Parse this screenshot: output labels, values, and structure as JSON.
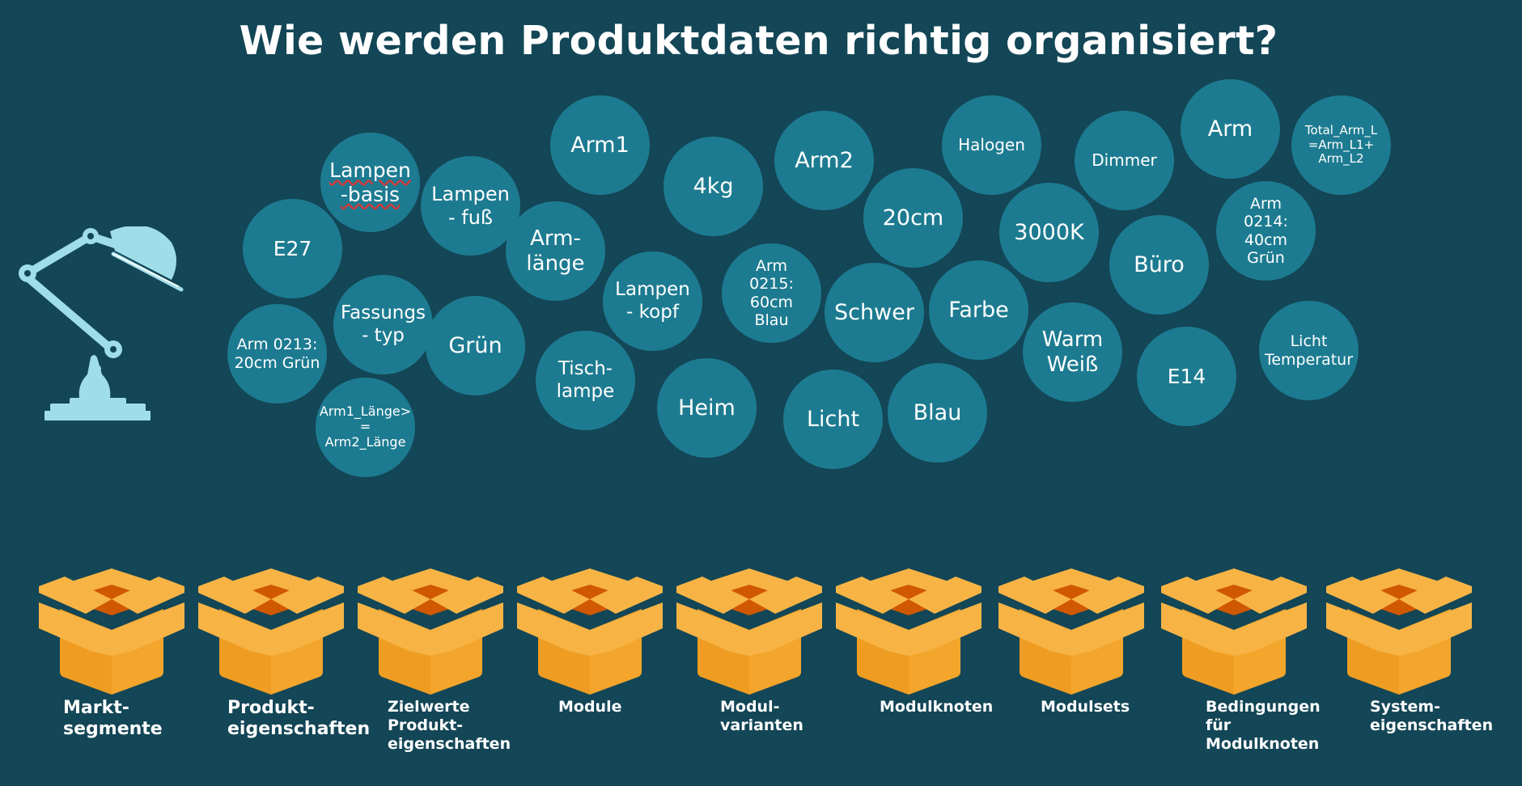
{
  "title": "Wie werden Produktdaten richtig organisiert?",
  "colors": {
    "background": "#134656",
    "bubble": "#1d7b91",
    "box_light": "#f7b445",
    "box_dark": "#ef9d22",
    "box_inner": "#cf5800",
    "lamp": "#9fdde9"
  },
  "icons": {
    "lamp": "desk-lamp-icon",
    "box": "open-cardboard-box-icon"
  },
  "bubbles": [
    "Lampen\n-basis",
    "Lampen\n- fuß",
    "E27",
    "Arm-\nlänge",
    "Arm1",
    "4kg",
    "Arm2",
    "20cm",
    "Halogen",
    "Dimmer",
    "Arm",
    "Total_Arm_L\n=Arm_L1+\nArm_L2",
    "Arm\n0214:\n40cm\nGrün",
    "3000K",
    "Büro",
    "Fassungs\n- typ",
    "Grün",
    "Arm  0213:\n20cm  Grün",
    "Lampen\n- kopf",
    "Arm\n0215:\n60cm\nBlau",
    "Schwer",
    "Farbe",
    "Warm\nWeiß",
    "E14",
    "Licht\nTemperatur",
    "Tisch-\nlampe",
    "Heim",
    "Licht",
    "Blau",
    "Arm1_Länge>\n=\nArm2_Länge"
  ],
  "categories": [
    "Markt-\nsegmente",
    "Produkt-\neigenschaften",
    "Zielwerte\nProdukt-\neigenschaften",
    "Module",
    "Modul-\nvarianten",
    "Modulknoten",
    "Modulsets",
    "Bedingungen\nfür\nModulknoten",
    "System-\neigenschaften"
  ]
}
